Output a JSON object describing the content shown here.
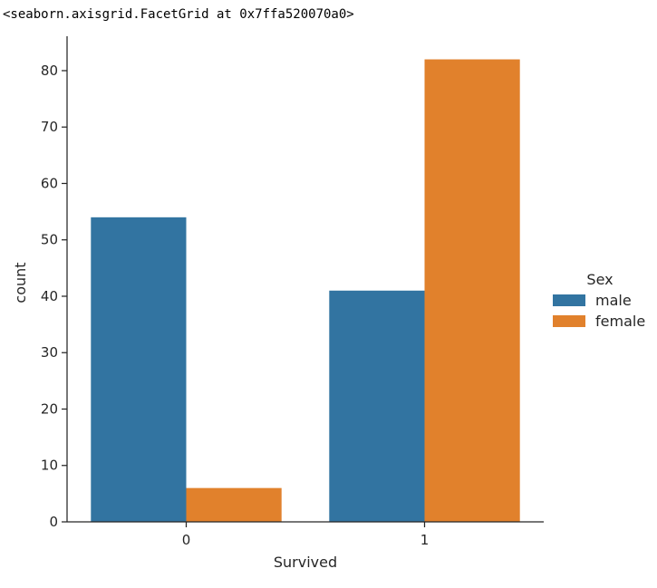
{
  "output_repr": "<seaborn.axisgrid.FacetGrid at 0x7ffa520070a0>",
  "chart_data": {
    "type": "bar",
    "categories": [
      "0",
      "1"
    ],
    "series": [
      {
        "name": "male",
        "values": [
          54,
          41
        ],
        "color": "#3274a1"
      },
      {
        "name": "female",
        "values": [
          6,
          82
        ],
        "color": "#e1812c"
      }
    ],
    "xlabel": "Survived",
    "ylabel": "count",
    "ylim": [
      0,
      86.1
    ],
    "yticks": [
      0,
      10,
      20,
      30,
      40,
      50,
      60,
      70,
      80
    ],
    "legend": {
      "title": "Sex",
      "placement": "right"
    },
    "grid": false
  }
}
